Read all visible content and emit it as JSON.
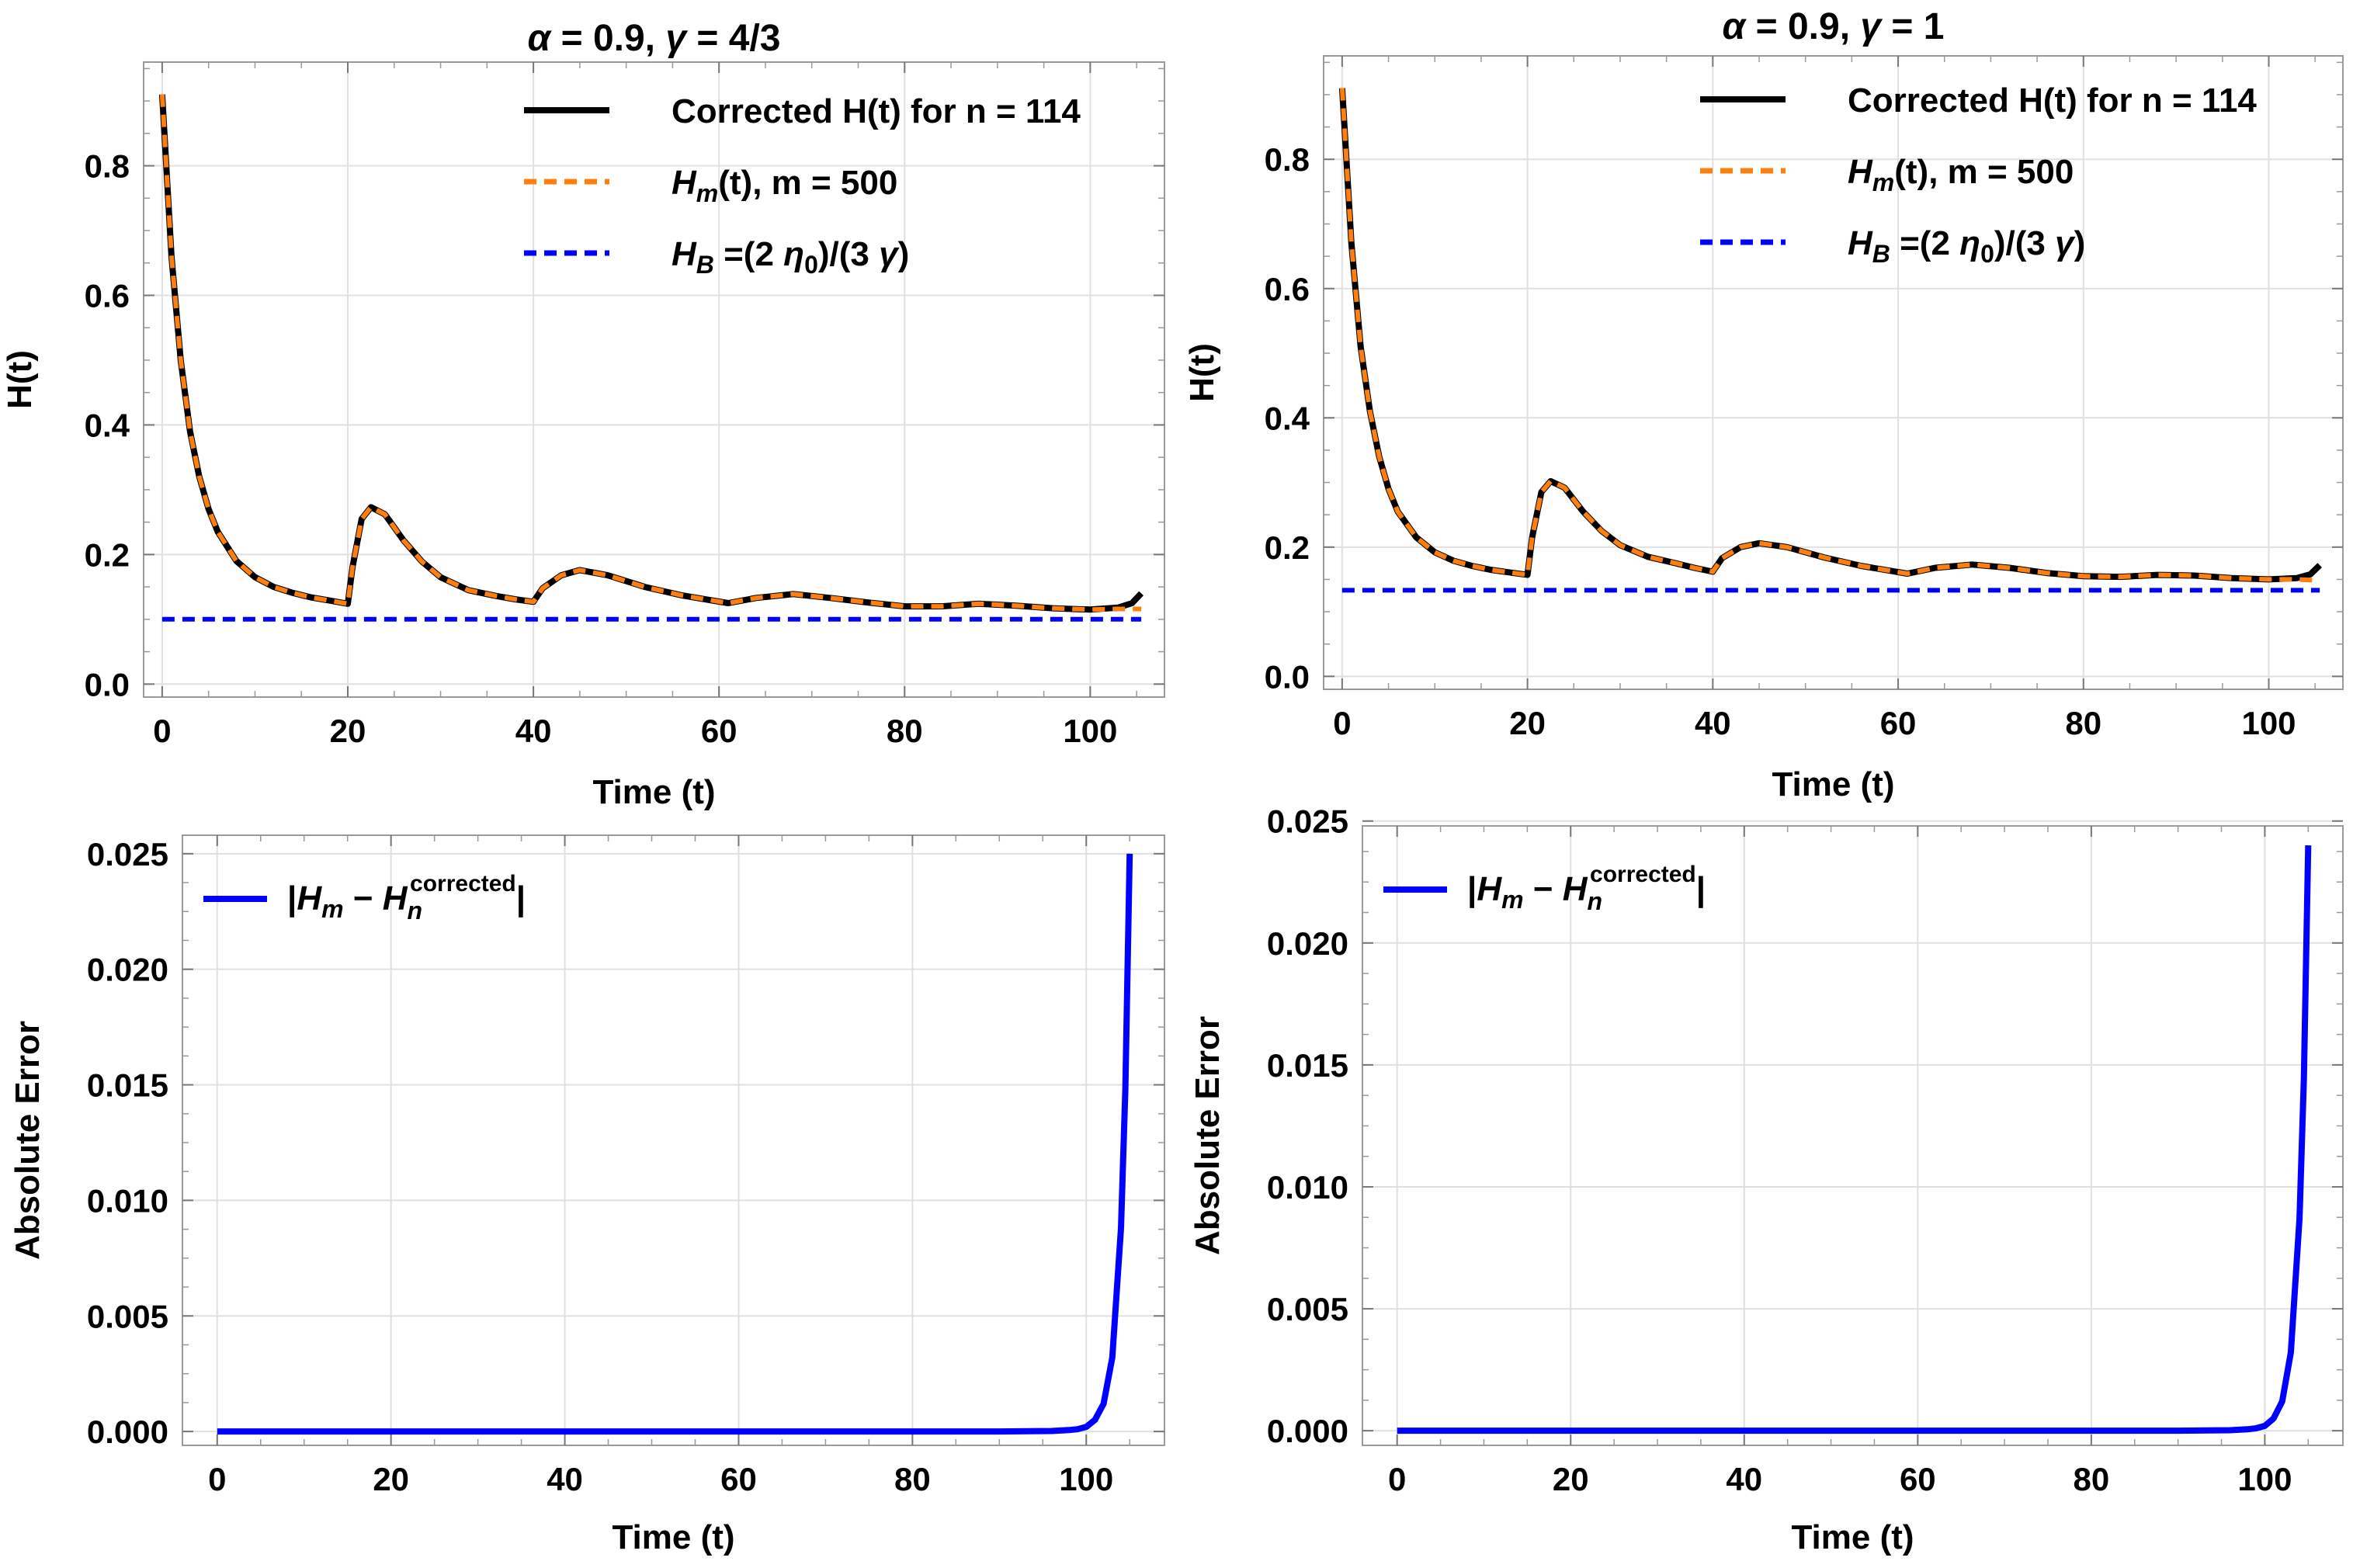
{
  "chart_data": [
    {
      "type": "line",
      "panel": "top-left",
      "title_parts": {
        "alpha_sym": "α",
        "alpha_text": " = 0.9, ",
        "gamma_sym": "γ",
        "gamma_text": " = 4/3"
      },
      "xlabel": "Time (t)",
      "ylabel": "H(t)",
      "xlim": [
        -2,
        108
      ],
      "ylim": [
        -0.02,
        0.96
      ],
      "xticks": [
        0,
        20,
        40,
        60,
        80,
        100
      ],
      "xtick_labels": [
        "0",
        "20",
        "40",
        "60",
        "80",
        "100"
      ],
      "yticks": [
        0.0,
        0.2,
        0.4,
        0.6,
        0.8
      ],
      "ytick_labels": [
        "0.0",
        "0.2",
        "0.4",
        "0.6",
        "0.8"
      ],
      "legend_position": "top-right",
      "series": [
        {
          "name": "Corrected H(t) for n = 114",
          "color": "#000000",
          "style": "solid",
          "x": [
            0,
            1,
            2,
            3,
            4,
            5,
            6,
            8,
            10,
            12,
            14,
            16,
            18,
            20,
            20.5,
            21.5,
            22.5,
            24,
            26,
            28,
            30,
            33,
            36,
            38,
            40,
            41,
            43,
            45,
            48,
            52,
            56,
            61,
            64,
            68,
            72,
            76,
            80,
            84,
            88,
            92,
            96,
            100,
            103,
            104.5,
            105.5
          ],
          "y": [
            0.91,
            0.66,
            0.5,
            0.39,
            0.32,
            0.27,
            0.235,
            0.19,
            0.165,
            0.15,
            0.141,
            0.134,
            0.129,
            0.124,
            0.18,
            0.255,
            0.273,
            0.262,
            0.222,
            0.189,
            0.165,
            0.145,
            0.136,
            0.131,
            0.127,
            0.148,
            0.168,
            0.176,
            0.168,
            0.15,
            0.137,
            0.125,
            0.133,
            0.139,
            0.133,
            0.126,
            0.12,
            0.12,
            0.124,
            0.121,
            0.117,
            0.115,
            0.118,
            0.125,
            0.14
          ]
        },
        {
          "name": "H_m(t), m = 500",
          "color": "#ff7f0e",
          "style": "dashed",
          "x": [
            0,
            1,
            2,
            3,
            4,
            5,
            6,
            8,
            10,
            12,
            14,
            16,
            18,
            20,
            20.5,
            21.5,
            22.5,
            24,
            26,
            28,
            30,
            33,
            36,
            38,
            40,
            41,
            43,
            45,
            48,
            52,
            56,
            61,
            64,
            68,
            72,
            76,
            80,
            84,
            88,
            92,
            96,
            100,
            103,
            104.5,
            105.5
          ],
          "y": [
            0.91,
            0.66,
            0.5,
            0.39,
            0.32,
            0.27,
            0.235,
            0.19,
            0.165,
            0.15,
            0.141,
            0.134,
            0.129,
            0.124,
            0.18,
            0.255,
            0.273,
            0.262,
            0.222,
            0.189,
            0.165,
            0.145,
            0.136,
            0.131,
            0.127,
            0.148,
            0.168,
            0.176,
            0.168,
            0.15,
            0.137,
            0.125,
            0.133,
            0.139,
            0.133,
            0.126,
            0.12,
            0.12,
            0.124,
            0.121,
            0.117,
            0.115,
            0.116,
            0.116,
            0.116
          ]
        },
        {
          "name": "H_B =(2 η0)/(3 γ)",
          "color": "#0000ff",
          "style": "dashed",
          "x": [
            0,
            105.5
          ],
          "y": [
            0.1,
            0.1
          ]
        }
      ]
    },
    {
      "type": "line",
      "panel": "top-right",
      "title_parts": {
        "alpha_sym": "α",
        "alpha_text": " = 0.9, ",
        "gamma_sym": "γ",
        "gamma_text": " = 1"
      },
      "xlabel": "Time (t)",
      "ylabel": "H(t)",
      "xlim": [
        -2,
        108
      ],
      "ylim": [
        -0.02,
        0.96
      ],
      "xticks": [
        0,
        20,
        40,
        60,
        80,
        100
      ],
      "xtick_labels": [
        "0",
        "20",
        "40",
        "60",
        "80",
        "100"
      ],
      "yticks": [
        0.0,
        0.2,
        0.4,
        0.6,
        0.8
      ],
      "ytick_labels": [
        "0.0",
        "0.2",
        "0.4",
        "0.6",
        "0.8"
      ],
      "legend_position": "top-right",
      "series": [
        {
          "name": "Corrected H(t) for n = 114",
          "color": "#000000",
          "style": "solid",
          "x": [
            0,
            1,
            2,
            3,
            4,
            5,
            6,
            8,
            10,
            12,
            14,
            16,
            18,
            20,
            20.5,
            21.5,
            22.5,
            24,
            26,
            28,
            30,
            33,
            36,
            38,
            40,
            41,
            43,
            45,
            48,
            52,
            56,
            61,
            64,
            68,
            72,
            76,
            80,
            84,
            88,
            92,
            96,
            100,
            103,
            104.5,
            105.5
          ],
          "y": [
            0.91,
            0.67,
            0.51,
            0.41,
            0.34,
            0.29,
            0.255,
            0.215,
            0.192,
            0.179,
            0.171,
            0.165,
            0.161,
            0.157,
            0.215,
            0.285,
            0.302,
            0.292,
            0.255,
            0.225,
            0.203,
            0.185,
            0.175,
            0.168,
            0.162,
            0.183,
            0.2,
            0.206,
            0.2,
            0.184,
            0.171,
            0.159,
            0.168,
            0.173,
            0.168,
            0.16,
            0.155,
            0.154,
            0.157,
            0.156,
            0.152,
            0.15,
            0.152,
            0.158,
            0.172
          ]
        },
        {
          "name": "H_m(t), m = 500",
          "color": "#ff7f0e",
          "style": "dashed",
          "x": [
            0,
            1,
            2,
            3,
            4,
            5,
            6,
            8,
            10,
            12,
            14,
            16,
            18,
            20,
            20.5,
            21.5,
            22.5,
            24,
            26,
            28,
            30,
            33,
            36,
            38,
            40,
            41,
            43,
            45,
            48,
            52,
            56,
            61,
            64,
            68,
            72,
            76,
            80,
            84,
            88,
            92,
            96,
            100,
            103,
            104.5,
            105.5
          ],
          "y": [
            0.91,
            0.67,
            0.51,
            0.41,
            0.34,
            0.29,
            0.255,
            0.215,
            0.192,
            0.179,
            0.171,
            0.165,
            0.161,
            0.157,
            0.215,
            0.285,
            0.302,
            0.292,
            0.255,
            0.225,
            0.203,
            0.185,
            0.175,
            0.168,
            0.162,
            0.183,
            0.2,
            0.206,
            0.2,
            0.184,
            0.171,
            0.159,
            0.168,
            0.173,
            0.168,
            0.16,
            0.155,
            0.154,
            0.157,
            0.156,
            0.152,
            0.15,
            0.15,
            0.149,
            0.149
          ]
        },
        {
          "name": "H_B =(2 η0)/(3 γ)",
          "color": "#0000ff",
          "style": "dashed",
          "x": [
            0,
            105.5
          ],
          "y": [
            0.1333,
            0.1333
          ]
        }
      ]
    },
    {
      "type": "line",
      "panel": "bottom-left",
      "xlabel": "Time (t)",
      "ylabel": "Absolute Error",
      "xlim": [
        -4,
        109
      ],
      "ylim": [
        -0.0006,
        0.0258
      ],
      "xticks": [
        0,
        20,
        40,
        60,
        80,
        100
      ],
      "xtick_labels": [
        "0",
        "20",
        "40",
        "60",
        "80",
        "100"
      ],
      "yticks": [
        0.0,
        0.005,
        0.01,
        0.015,
        0.02,
        0.025
      ],
      "ytick_labels": [
        "0.000",
        "0.005",
        "0.010",
        "0.015",
        "0.020",
        "0.025"
      ],
      "legend_position": "top-left",
      "series": [
        {
          "name": "|H_m − H_n^corrected|",
          "color": "#0000ff",
          "style": "solid",
          "x": [
            0,
            90,
            96,
            98,
            99,
            100,
            101,
            102,
            103,
            104,
            104.5,
            105
          ],
          "y": [
            0,
            0,
            2e-05,
            6e-05,
            0.0001,
            0.0002,
            0.0005,
            0.0012,
            0.0032,
            0.0088,
            0.0148,
            0.025
          ]
        }
      ]
    },
    {
      "type": "line",
      "panel": "bottom-right",
      "xlabel": "Time (t)",
      "ylabel": "Absolute Error",
      "xlim": [
        -4,
        109
      ],
      "ylim": [
        -0.0006,
        0.0248
      ],
      "xticks": [
        0,
        20,
        40,
        60,
        80,
        100
      ],
      "xtick_labels": [
        "0",
        "20",
        "40",
        "60",
        "80",
        "100"
      ],
      "yticks": [
        0.0,
        0.005,
        0.01,
        0.015,
        0.02,
        0.025
      ],
      "ytick_labels": [
        "0.000",
        "0.005",
        "0.010",
        "0.015",
        "0.020",
        "0.025"
      ],
      "legend_position": "top-left",
      "series": [
        {
          "name": "|H_m − H_n^corrected|",
          "color": "#0000ff",
          "style": "solid",
          "x": [
            0,
            90,
            96,
            98,
            99,
            100,
            101,
            102,
            103,
            104,
            104.5,
            105
          ],
          "y": [
            0,
            0,
            2e-05,
            6e-05,
            0.0001,
            0.0002,
            0.0005,
            0.0012,
            0.0032,
            0.0087,
            0.0144,
            0.024
          ]
        }
      ]
    }
  ],
  "legend_text": {
    "corrected": "Corrected H(t) for n = 114",
    "hm_base": "H",
    "hm_sub": "m",
    "hm_rest": "(t), m = 500",
    "hb_base": "H",
    "hb_sub": "B",
    "hb_eq": " =(2 ",
    "hb_eta": "η",
    "hb_eta_sub": "0",
    "hb_mid": ")/(3 ",
    "hb_gamma": "γ",
    "hb_end": ")",
    "err_open": "|",
    "err_h1": "H",
    "err_m": "m",
    "err_minus": " − ",
    "err_h2": "H",
    "err_n": "n",
    "err_sup": "corrected",
    "err_close": "|"
  }
}
